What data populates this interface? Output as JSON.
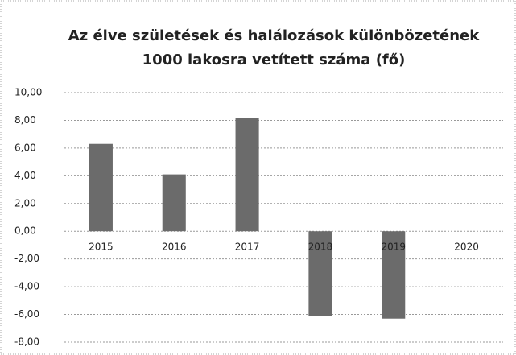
{
  "chart_data": {
    "type": "bar",
    "title": [
      "Az élve születések és halálozások különbözetének",
      "1000 lakosra vetített száma (fő)"
    ],
    "categories": [
      "2015",
      "2016",
      "2017",
      "2018",
      "2019",
      "2020"
    ],
    "values": [
      6.3,
      4.1,
      8.2,
      -6.1,
      -6.3,
      null
    ],
    "color": "#6b6b6b",
    "ylim": [
      -8,
      10
    ],
    "yticks": [
      {
        "value": -8,
        "label": "-8,00"
      },
      {
        "value": -6,
        "label": "-6,00"
      },
      {
        "value": -4,
        "label": "-4,00"
      },
      {
        "value": -2,
        "label": "-2,00"
      },
      {
        "value": 0,
        "label": "0,00"
      },
      {
        "value": 2,
        "label": "2,00"
      },
      {
        "value": 4,
        "label": "4,00"
      },
      {
        "value": 6,
        "label": "6,00"
      },
      {
        "value": 8,
        "label": "8,00"
      },
      {
        "value": 10,
        "label": "10,00"
      }
    ],
    "grid": true
  }
}
